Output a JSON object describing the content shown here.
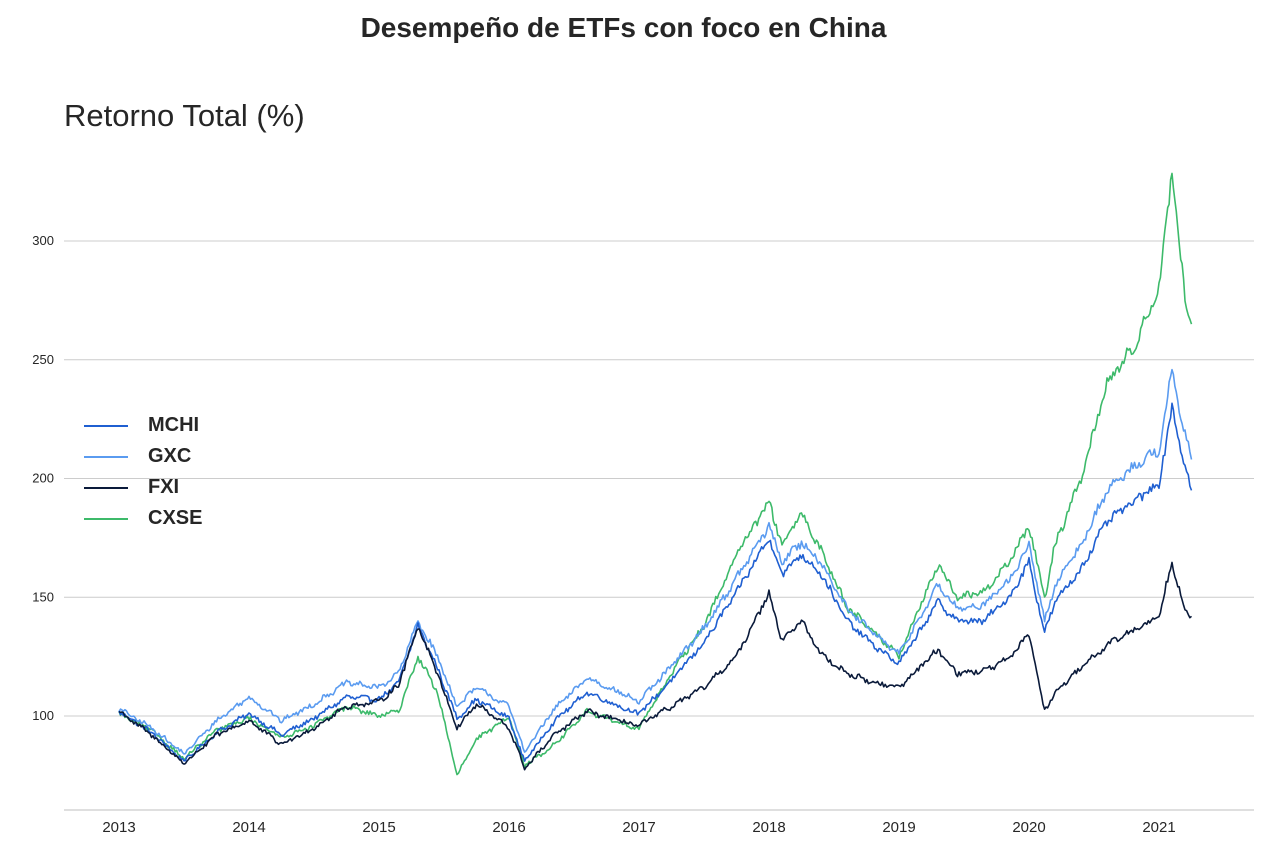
{
  "chart_data": {
    "type": "line",
    "title": "Desempeño de ETFs con foco en China",
    "ylabel": "Retorno Total (%)",
    "xlabel": "",
    "x_ticks": [
      "2013",
      "2014",
      "2015",
      "2016",
      "2017",
      "2018",
      "2019",
      "2020",
      "2021"
    ],
    "y_ticks": [
      "100",
      "150",
      "200",
      "250",
      "300"
    ],
    "ylim": [
      65,
      335
    ],
    "xlim": [
      2012.6,
      2021.7
    ],
    "grid": "horizontal",
    "legend_position": "center-left",
    "x": [
      2013.0,
      2013.25,
      2013.5,
      2013.75,
      2014.0,
      2014.25,
      2014.5,
      2014.75,
      2015.0,
      2015.15,
      2015.3,
      2015.45,
      2015.6,
      2015.75,
      2016.0,
      2016.12,
      2016.35,
      2016.6,
      2016.85,
      2017.0,
      2017.25,
      2017.5,
      2017.75,
      2018.0,
      2018.1,
      2018.25,
      2018.4,
      2018.6,
      2018.8,
      2019.0,
      2019.3,
      2019.45,
      2019.65,
      2019.85,
      2020.0,
      2020.12,
      2020.2,
      2020.4,
      2020.6,
      2020.8,
      2021.0,
      2021.1,
      2021.2,
      2021.25
    ],
    "series": [
      {
        "name": "MCHI",
        "color": "#1f5fd1",
        "values": [
          102,
          93,
          81,
          93,
          101,
          92,
          99,
          108,
          107,
          114,
          138,
          120,
          99,
          107,
          99,
          81,
          98,
          110,
          104,
          101,
          115,
          131,
          152,
          175,
          160,
          168,
          160,
          140,
          130,
          122,
          148,
          140,
          140,
          150,
          165,
          135,
          148,
          162,
          182,
          190,
          198,
          230,
          205,
          195
        ]
      },
      {
        "name": "GXC",
        "color": "#5a9bf0",
        "values": [
          103,
          95,
          84,
          98,
          108,
          98,
          105,
          114,
          112,
          118,
          140,
          125,
          104,
          112,
          104,
          85,
          103,
          116,
          110,
          106,
          121,
          137,
          158,
          180,
          165,
          173,
          165,
          145,
          135,
          126,
          155,
          145,
          147,
          157,
          172,
          140,
          155,
          172,
          195,
          205,
          212,
          245,
          218,
          208
        ]
      },
      {
        "name": "FXI",
        "color": "#0a1a3a",
        "values": [
          102,
          92,
          80,
          92,
          98,
          88,
          95,
          104,
          106,
          113,
          138,
          118,
          95,
          105,
          95,
          78,
          92,
          102,
          98,
          96,
          104,
          112,
          125,
          152,
          132,
          140,
          126,
          118,
          114,
          112,
          128,
          118,
          119,
          124,
          135,
          102,
          110,
          120,
          130,
          136,
          142,
          165,
          145,
          142
        ]
      },
      {
        "name": "CXSE",
        "color": "#3dba6a",
        "values": [
          101,
          94,
          82,
          94,
          99,
          91,
          96,
          104,
          100,
          102,
          125,
          110,
          75,
          90,
          100,
          79,
          88,
          102,
          97,
          95,
          118,
          138,
          168,
          190,
          172,
          185,
          170,
          146,
          136,
          125,
          164,
          150,
          152,
          165,
          180,
          150,
          172,
          200,
          240,
          255,
          280,
          330,
          275,
          265
        ]
      }
    ]
  }
}
